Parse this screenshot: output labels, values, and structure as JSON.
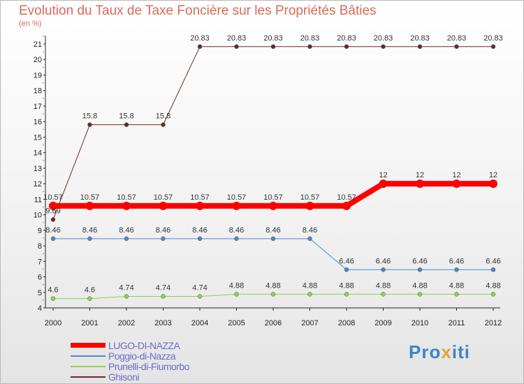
{
  "title": "Evolution du Taux de Taxe Foncière sur les Propriétés Bâties",
  "unit": "(en %)",
  "logo": "Proxiti",
  "colors": {
    "axis": "#222222",
    "grid_dots": "#e05050"
  },
  "chart_data": {
    "type": "line",
    "title": "Evolution du Taux de Taxe Foncière sur les Propriétés Bâties",
    "ylabel": "(en %)",
    "xlabel": "",
    "ylim": [
      4,
      21
    ],
    "yticks": [
      4,
      5,
      6,
      7,
      8,
      9,
      10,
      11,
      12,
      13,
      14,
      15,
      16,
      17,
      18,
      19,
      20,
      21
    ],
    "categories": [
      "2000",
      "2001",
      "2002",
      "2003",
      "2004",
      "2005",
      "2006",
      "2007",
      "2008",
      "2009",
      "2010",
      "2011",
      "2012"
    ],
    "legend_position": "bottom-left",
    "series": [
      {
        "name": "LUGO-DI-NAZZA",
        "color": "#ff0000",
        "width": 8,
        "marker": 6,
        "values": [
          10.57,
          10.57,
          10.57,
          10.57,
          10.57,
          10.57,
          10.57,
          10.57,
          10.57,
          12,
          12,
          12,
          12
        ],
        "labels": [
          "10.57",
          "10.57",
          "10.57",
          "10.57",
          "10.57",
          "10.57",
          "10.57",
          "10.57",
          "10.57",
          "12",
          "12",
          "12",
          "12"
        ]
      },
      {
        "name": "Poggio-di-Nazza",
        "color": "#4a88c8",
        "width": 1,
        "marker": 3,
        "values": [
          8.46,
          8.46,
          8.46,
          8.46,
          8.46,
          8.46,
          8.46,
          8.46,
          6.46,
          6.46,
          6.46,
          6.46,
          6.46
        ],
        "labels": [
          "8.46",
          "8.46",
          "8.46",
          "8.46",
          "8.46",
          "8.46",
          "8.46",
          "8.46",
          "6.46",
          "6.46",
          "6.46",
          "6.46",
          "6.46"
        ]
      },
      {
        "name": "Prunelli-di-Fiumorbo",
        "color": "#90d050",
        "width": 1,
        "marker": 3,
        "values": [
          4.6,
          4.6,
          4.74,
          4.74,
          4.74,
          4.88,
          4.88,
          4.88,
          4.88,
          4.88,
          4.88,
          4.88,
          4.88
        ],
        "labels": [
          "4.6",
          "4.6",
          "4.74",
          "4.74",
          "4.74",
          "4.88",
          "4.88",
          "4.88",
          "4.88",
          "4.88",
          "4.88",
          "4.88",
          "4.88"
        ]
      },
      {
        "name": "Ghisoni",
        "color": "#6b2828",
        "width": 1,
        "marker": 3,
        "values": [
          9.69,
          15.8,
          15.8,
          15.8,
          20.83,
          20.83,
          20.83,
          20.83,
          20.83,
          20.83,
          20.83,
          20.83,
          20.83
        ],
        "labels": [
          "9.69",
          "15.8",
          "15.8",
          "15.8",
          "20.83",
          "20.83",
          "20.83",
          "20.83",
          "20.83",
          "20.83",
          "20.83",
          "20.83",
          "20.83"
        ]
      }
    ]
  }
}
